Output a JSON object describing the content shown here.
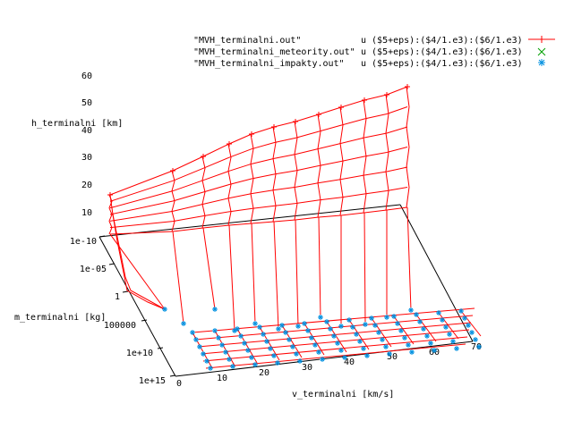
{
  "chart_data": {
    "type": "surface3d",
    "zlabel": "h_terminalni [km]",
    "ylabel": "m_terminalni [kg]",
    "xlabel": "v_terminalni [km/s]",
    "z_ticks": [
      "10",
      "20",
      "30",
      "40",
      "50",
      "60"
    ],
    "y_ticks": [
      "1e-10",
      "1e-05",
      "1",
      "100000",
      "1e+10",
      "1e+15"
    ],
    "x_ticks": [
      "0",
      "10",
      "20",
      "30",
      "40",
      "50",
      "60",
      "70"
    ],
    "zlim": [
      0,
      60
    ],
    "xlim": [
      0,
      70
    ],
    "y_scale": "log",
    "legend_position": "top-right",
    "series": [
      {
        "name": "\"MVH_terminalni.out\"",
        "using": "u ($5+eps):($4/1.e3):($6/1.e3)",
        "color": "#ff0000",
        "marker": "plus-line"
      },
      {
        "name": "\"MVH_terminalni_meteority.out\"",
        "using": "u ($5+eps):($4/1.e3):($6/1.e3)",
        "color": "#00a000",
        "marker": "cross"
      },
      {
        "name": "\"MVH_terminalni_impakty.out\"",
        "using": "u ($5+eps):($4/1.e3):($6/1.e3)",
        "color": "#0090e0",
        "marker": "star"
      }
    ]
  }
}
